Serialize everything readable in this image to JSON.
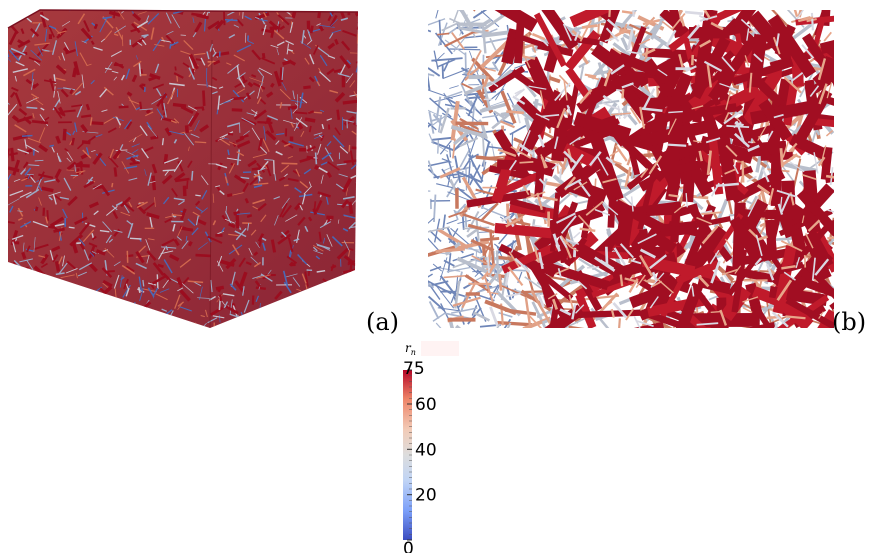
{
  "panels": {
    "a_label": "(a)",
    "b_label": "(b)"
  },
  "colorbar": {
    "title_main": "r",
    "title_sub": "n",
    "min": 0,
    "max": 75,
    "ticks": [
      0,
      20,
      40,
      60,
      75
    ],
    "tick_labels": [
      "0",
      "20",
      "40",
      "60",
      "75"
    ],
    "colormap": [
      "#3b4cc0",
      "#7b9ff9",
      "#c0d4f5",
      "#dddddd",
      "#f2cbb7",
      "#ee8468",
      "#b40426"
    ]
  },
  "colors": {
    "network_dark": "#9b0d1f",
    "network_mid": "#d2684e",
    "network_light": "#9aa8c4",
    "network_blue": "#4a68b5"
  }
}
